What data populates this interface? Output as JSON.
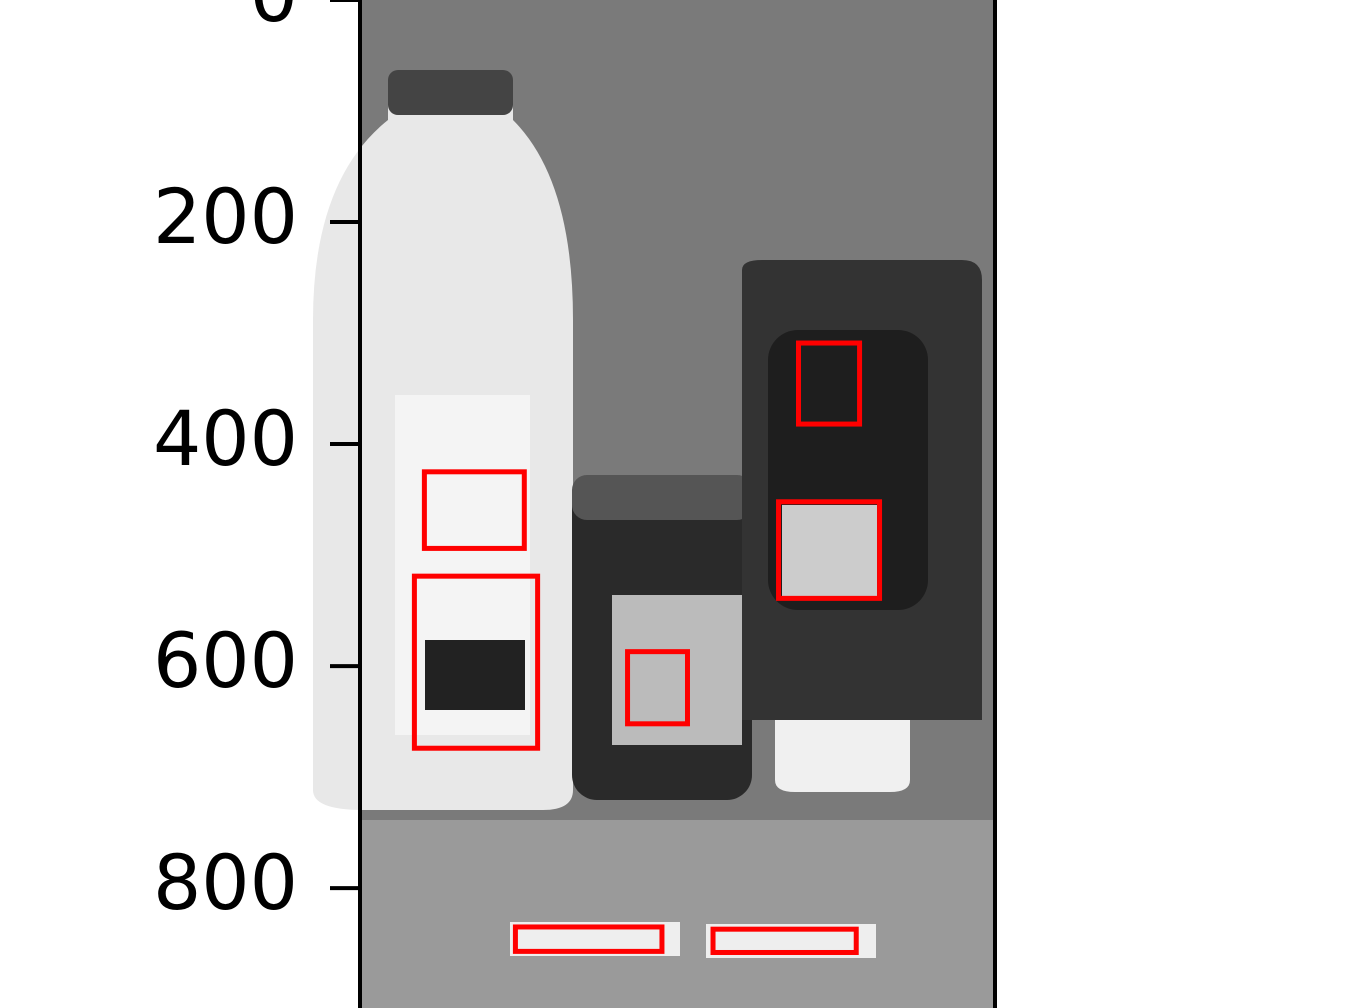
{
  "chart_data": {
    "type": "image",
    "xlim": [
      0,
      572
    ],
    "ylim": [
      908,
      0
    ],
    "yticks": [
      0,
      200,
      400,
      600,
      800
    ],
    "box_color": "#ff0000",
    "boxes": [
      {
        "x": [
          58,
          148
        ],
        "y": [
          425,
          494
        ]
      },
      {
        "x": [
          49,
          160
        ],
        "y": [
          519,
          674
        ]
      },
      {
        "x": [
          241,
          295
        ],
        "y": [
          587,
          652
        ]
      },
      {
        "x": [
          395,
          450
        ],
        "y": [
          309,
          382
        ]
      },
      {
        "x": [
          377,
          468
        ],
        "y": [
          452,
          539
        ]
      },
      {
        "x": [
          140,
          272
        ],
        "y": [
          835,
          857
        ]
      },
      {
        "x": [
          318,
          447
        ],
        "y": [
          837,
          858
        ]
      }
    ]
  }
}
